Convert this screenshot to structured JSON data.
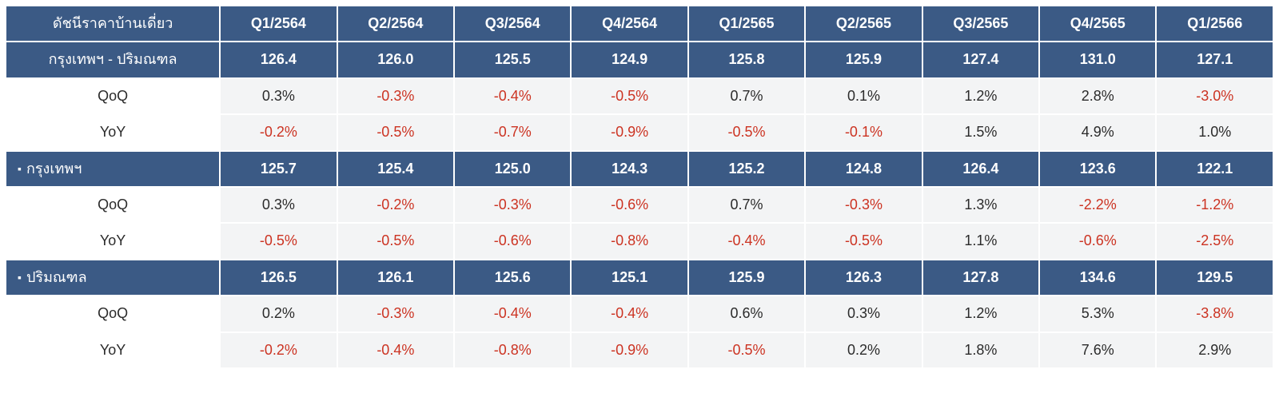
{
  "colors": {
    "header_bg": "#3b5a85",
    "header_fg": "#ffffff",
    "row_bg": "#f3f4f5",
    "text": "#2b2b2b",
    "negative": "#cc3322"
  },
  "table": {
    "title": "ดัชนีราคาบ้านเดี่ยว",
    "columns": [
      "Q1/2564",
      "Q2/2564",
      "Q3/2564",
      "Q4/2564",
      "Q1/2565",
      "Q2/2565",
      "Q3/2565",
      "Q4/2565",
      "Q1/2566"
    ],
    "sections": [
      {
        "label": "กรุงเทพฯ - ปริมณฑล",
        "bullet": false,
        "index": [
          "126.4",
          "126.0",
          "125.5",
          "124.9",
          "125.8",
          "125.9",
          "127.4",
          "131.0",
          "127.1"
        ],
        "rows": [
          {
            "label": "QoQ",
            "values": [
              "0.3%",
              "-0.3%",
              "-0.4%",
              "-0.5%",
              "0.7%",
              "0.1%",
              "1.2%",
              "2.8%",
              "-3.0%"
            ]
          },
          {
            "label": "YoY",
            "values": [
              "-0.2%",
              "-0.5%",
              "-0.7%",
              "-0.9%",
              "-0.5%",
              "-0.1%",
              "1.5%",
              "4.9%",
              "1.0%"
            ]
          }
        ]
      },
      {
        "label": "กรุงเทพฯ",
        "bullet": true,
        "index": [
          "125.7",
          "125.4",
          "125.0",
          "124.3",
          "125.2",
          "124.8",
          "126.4",
          "123.6",
          "122.1"
        ],
        "rows": [
          {
            "label": "QoQ",
            "values": [
              "0.3%",
              "-0.2%",
              "-0.3%",
              "-0.6%",
              "0.7%",
              "-0.3%",
              "1.3%",
              "-2.2%",
              "-1.2%"
            ]
          },
          {
            "label": "YoY",
            "values": [
              "-0.5%",
              "-0.5%",
              "-0.6%",
              "-0.8%",
              "-0.4%",
              "-0.5%",
              "1.1%",
              "-0.6%",
              "-2.5%"
            ]
          }
        ]
      },
      {
        "label": "ปริมณฑล",
        "bullet": true,
        "index": [
          "126.5",
          "126.1",
          "125.6",
          "125.1",
          "125.9",
          "126.3",
          "127.8",
          "134.6",
          "129.5"
        ],
        "rows": [
          {
            "label": "QoQ",
            "values": [
              "0.2%",
              "-0.3%",
              "-0.4%",
              "-0.4%",
              "0.6%",
              "0.3%",
              "1.2%",
              "5.3%",
              "-3.8%"
            ]
          },
          {
            "label": "YoY",
            "values": [
              "-0.2%",
              "-0.4%",
              "-0.8%",
              "-0.9%",
              "-0.5%",
              "0.2%",
              "1.8%",
              "7.6%",
              "2.9%"
            ]
          }
        ]
      }
    ]
  }
}
